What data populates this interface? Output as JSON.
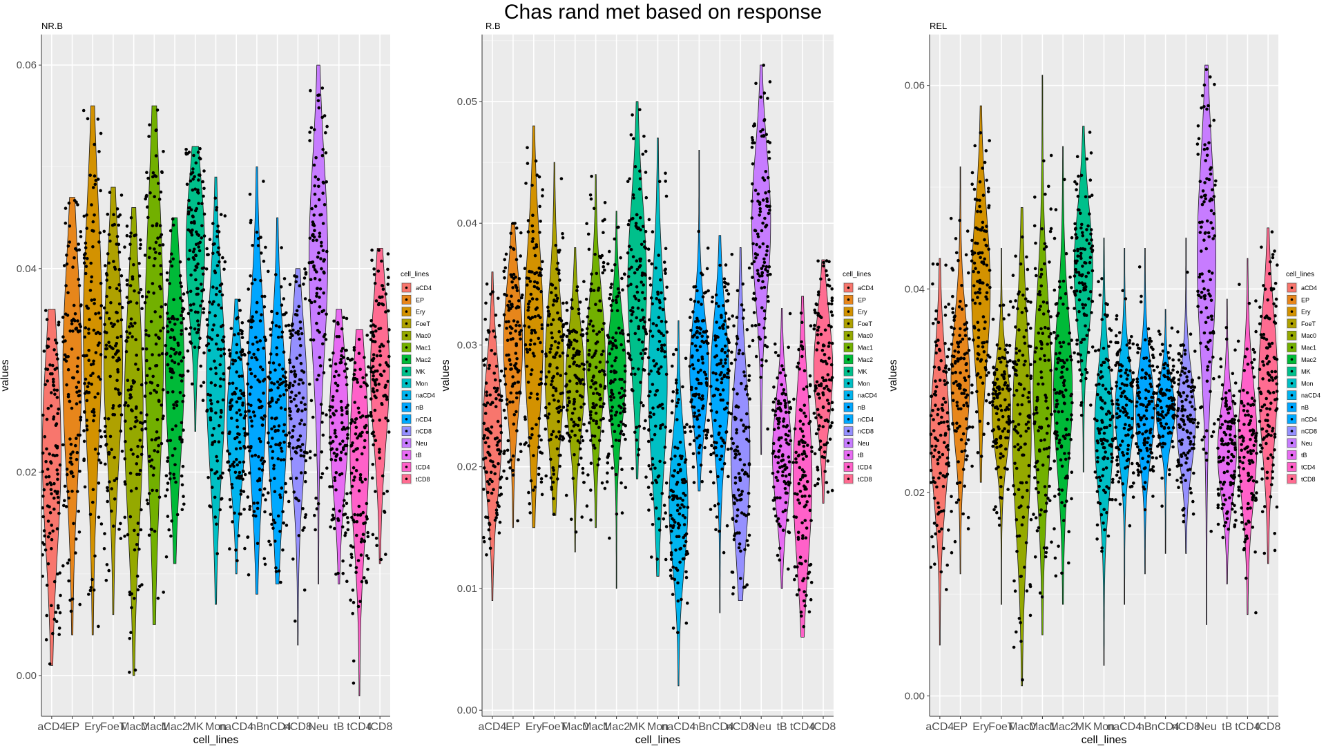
{
  "figure": {
    "title": "Chas rand met based on response"
  },
  "colors": {
    "panel_bg": "#ebebeb",
    "grid_major": "#ffffff",
    "grid_minor": "#f5f5f5",
    "point": "#000000",
    "violin_outline": "#1a1a1a"
  },
  "chart_data": [
    {
      "type": "violin",
      "title": "NR.B",
      "xlabel": "cell_lines",
      "ylabel": "values",
      "ylim": [
        -0.004,
        0.063
      ],
      "yticks": [
        0.0,
        0.02,
        0.04,
        0.06
      ],
      "ytick_labels": [
        "0.00",
        "0.02",
        "0.04",
        "0.06"
      ],
      "legend": {
        "title": "cell_lines",
        "placement": "right"
      },
      "categories": [
        "aCD4",
        "EP",
        "Ery",
        "FoeT",
        "Mac0",
        "Mac1",
        "Mac2",
        "MK",
        "Mon",
        "naCD4",
        "nB",
        "nCD4",
        "nCD8",
        "Neu",
        "tB",
        "tCD4",
        "tCD8"
      ],
      "series_colors": [
        "#F8766D",
        "#E7861B",
        "#D39200",
        "#AFA100",
        "#95A900",
        "#72B000",
        "#00BA38",
        "#00C08B",
        "#00BFC4",
        "#00B4EF",
        "#00A6FF",
        "#00A9FF",
        "#9590FF",
        "#C77CFF",
        "#E76BF3",
        "#FF61C9",
        "#FF6C91"
      ],
      "violins": [
        {
          "min": 0.001,
          "max": 0.036,
          "median": 0.022,
          "q_low": 0.015,
          "q_high": 0.028
        },
        {
          "min": 0.004,
          "max": 0.047,
          "median": 0.03,
          "q_low": 0.023,
          "q_high": 0.037
        },
        {
          "min": 0.004,
          "max": 0.056,
          "median": 0.034,
          "q_low": 0.026,
          "q_high": 0.042
        },
        {
          "min": 0.006,
          "max": 0.048,
          "median": 0.031,
          "q_low": 0.024,
          "q_high": 0.037
        },
        {
          "min": 0.0,
          "max": 0.046,
          "median": 0.026,
          "q_low": 0.018,
          "q_high": 0.033
        },
        {
          "min": 0.005,
          "max": 0.056,
          "median": 0.033,
          "q_low": 0.024,
          "q_high": 0.042
        },
        {
          "min": 0.011,
          "max": 0.045,
          "median": 0.03,
          "q_low": 0.024,
          "q_high": 0.036
        },
        {
          "min": 0.024,
          "max": 0.052,
          "median": 0.042,
          "q_low": 0.037,
          "q_high": 0.046
        },
        {
          "min": 0.007,
          "max": 0.049,
          "median": 0.029,
          "q_low": 0.022,
          "q_high": 0.034
        },
        {
          "min": 0.01,
          "max": 0.037,
          "median": 0.025,
          "q_low": 0.021,
          "q_high": 0.029
        },
        {
          "min": 0.008,
          "max": 0.05,
          "median": 0.028,
          "q_low": 0.022,
          "q_high": 0.034
        },
        {
          "min": 0.009,
          "max": 0.045,
          "median": 0.025,
          "q_low": 0.02,
          "q_high": 0.031
        },
        {
          "min": 0.003,
          "max": 0.04,
          "median": 0.027,
          "q_low": 0.022,
          "q_high": 0.032
        },
        {
          "min": 0.009,
          "max": 0.06,
          "median": 0.041,
          "q_low": 0.034,
          "q_high": 0.047
        },
        {
          "min": 0.009,
          "max": 0.036,
          "median": 0.025,
          "q_low": 0.02,
          "q_high": 0.029
        },
        {
          "min": -0.002,
          "max": 0.034,
          "median": 0.022,
          "q_low": 0.016,
          "q_high": 0.027
        },
        {
          "min": 0.011,
          "max": 0.042,
          "median": 0.03,
          "q_low": 0.025,
          "q_high": 0.035
        }
      ]
    },
    {
      "type": "violin",
      "title": "R.B",
      "xlabel": "cell_lines",
      "ylabel": "values",
      "ylim": [
        -0.0005,
        0.0555
      ],
      "yticks": [
        0.0,
        0.01,
        0.02,
        0.03,
        0.04,
        0.05
      ],
      "ytick_labels": [
        "0.00",
        "0.01",
        "0.02",
        "0.03",
        "0.04",
        "0.05"
      ],
      "legend": {
        "title": "cell_lines",
        "placement": "right"
      },
      "categories": [
        "aCD4",
        "EP",
        "Ery",
        "FoeT",
        "Mac0",
        "Mac1",
        "Mac2",
        "MK",
        "Mon",
        "naCD4",
        "nB",
        "nCD4",
        "nCD8",
        "Neu",
        "tB",
        "tCD4",
        "tCD8"
      ],
      "series_colors": [
        "#F8766D",
        "#E7861B",
        "#D39200",
        "#AFA100",
        "#95A900",
        "#72B000",
        "#00BA38",
        "#00C08B",
        "#00BFC4",
        "#00B4EF",
        "#00A6FF",
        "#00A9FF",
        "#9590FF",
        "#C77CFF",
        "#E76BF3",
        "#FF61C9",
        "#FF6C91"
      ],
      "violins": [
        {
          "min": 0.009,
          "max": 0.036,
          "median": 0.023,
          "q_low": 0.019,
          "q_high": 0.026
        },
        {
          "min": 0.015,
          "max": 0.04,
          "median": 0.03,
          "q_low": 0.026,
          "q_high": 0.033
        },
        {
          "min": 0.015,
          "max": 0.048,
          "median": 0.031,
          "q_low": 0.026,
          "q_high": 0.036
        },
        {
          "min": 0.016,
          "max": 0.045,
          "median": 0.028,
          "q_low": 0.025,
          "q_high": 0.033
        },
        {
          "min": 0.013,
          "max": 0.038,
          "median": 0.027,
          "q_low": 0.024,
          "q_high": 0.03
        },
        {
          "min": 0.015,
          "max": 0.044,
          "median": 0.029,
          "q_low": 0.026,
          "q_high": 0.033
        },
        {
          "min": 0.01,
          "max": 0.041,
          "median": 0.028,
          "q_low": 0.025,
          "q_high": 0.031
        },
        {
          "min": 0.019,
          "max": 0.05,
          "median": 0.035,
          "q_low": 0.031,
          "q_high": 0.04
        },
        {
          "min": 0.011,
          "max": 0.047,
          "median": 0.027,
          "q_low": 0.022,
          "q_high": 0.032
        },
        {
          "min": 0.002,
          "max": 0.032,
          "median": 0.017,
          "q_low": 0.013,
          "q_high": 0.02
        },
        {
          "min": 0.018,
          "max": 0.046,
          "median": 0.028,
          "q_low": 0.025,
          "q_high": 0.031
        },
        {
          "min": 0.008,
          "max": 0.039,
          "median": 0.027,
          "q_low": 0.023,
          "q_high": 0.03
        },
        {
          "min": 0.009,
          "max": 0.038,
          "median": 0.021,
          "q_low": 0.017,
          "q_high": 0.026
        },
        {
          "min": 0.021,
          "max": 0.053,
          "median": 0.04,
          "q_low": 0.036,
          "q_high": 0.044
        },
        {
          "min": 0.01,
          "max": 0.033,
          "median": 0.021,
          "q_low": 0.018,
          "q_high": 0.024
        },
        {
          "min": 0.006,
          "max": 0.034,
          "median": 0.019,
          "q_low": 0.015,
          "q_high": 0.024
        },
        {
          "min": 0.017,
          "max": 0.037,
          "median": 0.028,
          "q_low": 0.025,
          "q_high": 0.031
        }
      ]
    },
    {
      "type": "violin",
      "title": "REL",
      "xlabel": "cell_lines",
      "ylabel": "values",
      "ylim": [
        -0.002,
        0.065
      ],
      "yticks": [
        0.0,
        0.02,
        0.04,
        0.06
      ],
      "ytick_labels": [
        "0.00",
        "0.02",
        "0.04",
        "0.06"
      ],
      "legend": {
        "title": "cell_lines",
        "placement": "right"
      },
      "categories": [
        "aCD4",
        "EP",
        "Ery",
        "FoeT",
        "Mac0",
        "Mac1",
        "Mac2",
        "MK",
        "Mon",
        "naCD4",
        "nB",
        "nCD4",
        "nCD8",
        "Neu",
        "tB",
        "tCD4",
        "tCD8"
      ],
      "series_colors": [
        "#F8766D",
        "#E7861B",
        "#D39200",
        "#AFA100",
        "#95A900",
        "#72B000",
        "#00BA38",
        "#00C08B",
        "#00BFC4",
        "#00B4EF",
        "#00A6FF",
        "#00A9FF",
        "#9590FF",
        "#C77CFF",
        "#E76BF3",
        "#FF61C9",
        "#FF6C91"
      ],
      "violins": [
        {
          "min": 0.005,
          "max": 0.043,
          "median": 0.026,
          "q_low": 0.021,
          "q_high": 0.03
        },
        {
          "min": 0.012,
          "max": 0.052,
          "median": 0.031,
          "q_low": 0.027,
          "q_high": 0.035
        },
        {
          "min": 0.021,
          "max": 0.058,
          "median": 0.04,
          "q_low": 0.035,
          "q_high": 0.045
        },
        {
          "min": 0.009,
          "max": 0.044,
          "median": 0.028,
          "q_low": 0.025,
          "q_high": 0.031
        },
        {
          "min": 0.001,
          "max": 0.048,
          "median": 0.026,
          "q_low": 0.018,
          "q_high": 0.031
        },
        {
          "min": 0.006,
          "max": 0.061,
          "median": 0.03,
          "q_low": 0.024,
          "q_high": 0.036
        },
        {
          "min": 0.009,
          "max": 0.054,
          "median": 0.03,
          "q_low": 0.025,
          "q_high": 0.035
        },
        {
          "min": 0.022,
          "max": 0.056,
          "median": 0.042,
          "q_low": 0.038,
          "q_high": 0.046
        },
        {
          "min": 0.003,
          "max": 0.045,
          "median": 0.026,
          "q_low": 0.022,
          "q_high": 0.03
        },
        {
          "min": 0.009,
          "max": 0.044,
          "median": 0.028,
          "q_low": 0.025,
          "q_high": 0.031
        },
        {
          "min": 0.012,
          "max": 0.044,
          "median": 0.028,
          "q_low": 0.025,
          "q_high": 0.031
        },
        {
          "min": 0.014,
          "max": 0.038,
          "median": 0.028,
          "q_low": 0.026,
          "q_high": 0.03
        },
        {
          "min": 0.014,
          "max": 0.045,
          "median": 0.027,
          "q_low": 0.024,
          "q_high": 0.03
        },
        {
          "min": 0.007,
          "max": 0.062,
          "median": 0.043,
          "q_low": 0.036,
          "q_high": 0.049
        },
        {
          "min": 0.011,
          "max": 0.039,
          "median": 0.024,
          "q_low": 0.021,
          "q_high": 0.027
        },
        {
          "min": 0.008,
          "max": 0.043,
          "median": 0.025,
          "q_low": 0.021,
          "q_high": 0.029
        },
        {
          "min": 0.013,
          "max": 0.046,
          "median": 0.031,
          "q_low": 0.026,
          "q_high": 0.035
        }
      ]
    }
  ]
}
